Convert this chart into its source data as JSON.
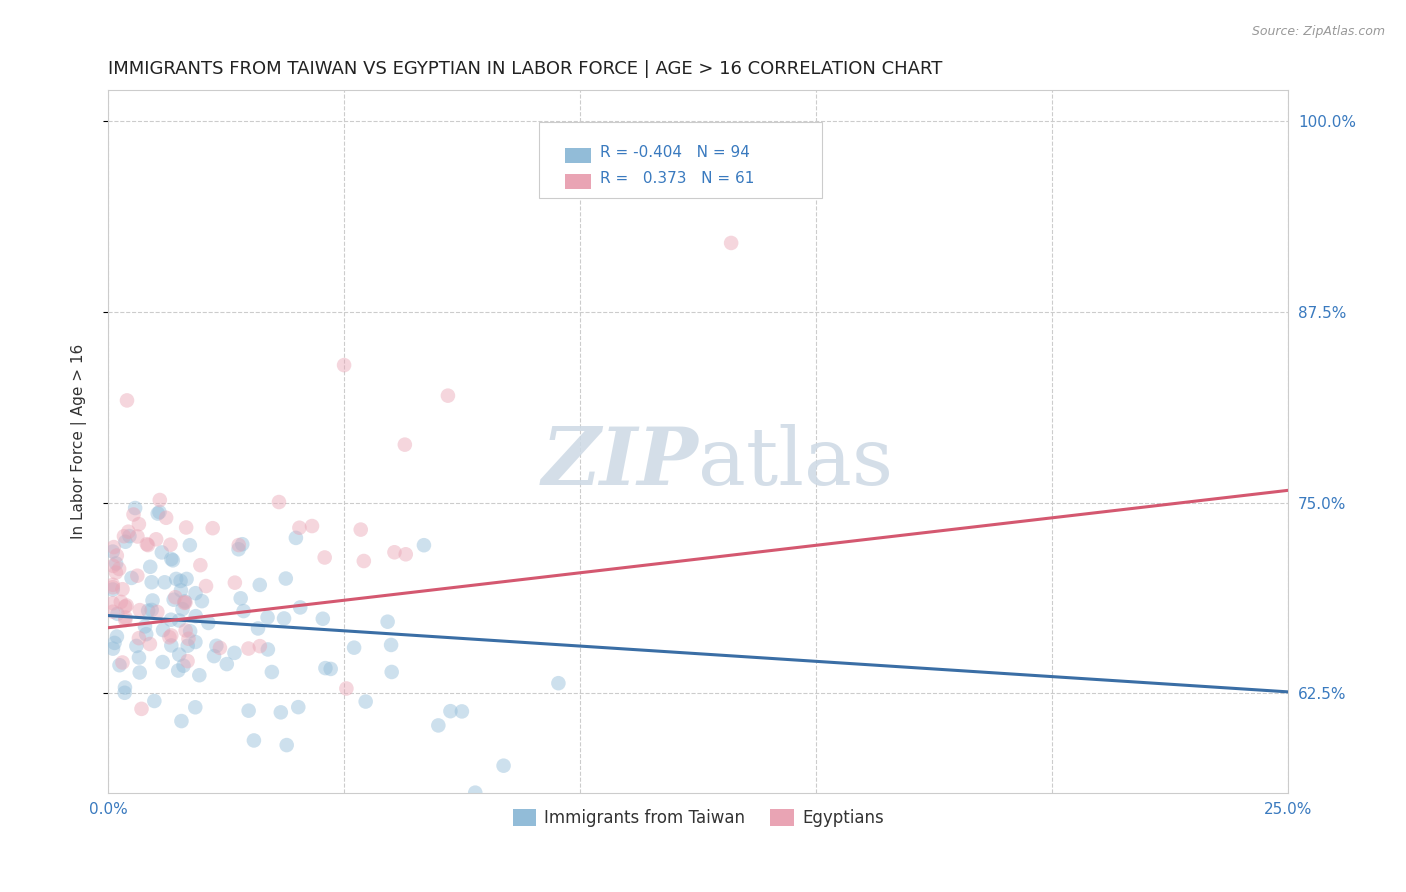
{
  "title": "IMMIGRANTS FROM TAIWAN VS EGYPTIAN IN LABOR FORCE | AGE > 16 CORRELATION CHART",
  "source": "Source: ZipAtlas.com",
  "ylabel": "In Labor Force | Age > 16",
  "xlim": [
    0.0,
    0.25
  ],
  "ylim": [
    0.56,
    1.02
  ],
  "y_ticks": [
    0.625,
    0.75,
    0.875,
    1.0
  ],
  "y_tick_labels": [
    "62.5%",
    "75.0%",
    "87.5%",
    "100.0%"
  ],
  "legend_labels": [
    "Immigrants from Taiwan",
    "Egyptians"
  ],
  "taiwan_R": -0.404,
  "taiwan_N": 94,
  "egypt_R": 0.373,
  "egypt_N": 61,
  "taiwan_color": "#92bcd8",
  "egypt_color": "#e9a4b4",
  "taiwan_line_color": "#3a6ea5",
  "egypt_line_color": "#d45870",
  "taiwan_line_y0": 0.676,
  "taiwan_line_y1": 0.626,
  "egypt_line_y0": 0.668,
  "egypt_line_y1": 0.758,
  "background_color": "#ffffff",
  "grid_color": "#cccccc",
  "title_fontsize": 13,
  "axis_label_fontsize": 11,
  "tick_fontsize": 11,
  "scatter_size": 110,
  "scatter_alpha": 0.45,
  "line_width": 2.2,
  "watermark_color": "#cdd9e5"
}
